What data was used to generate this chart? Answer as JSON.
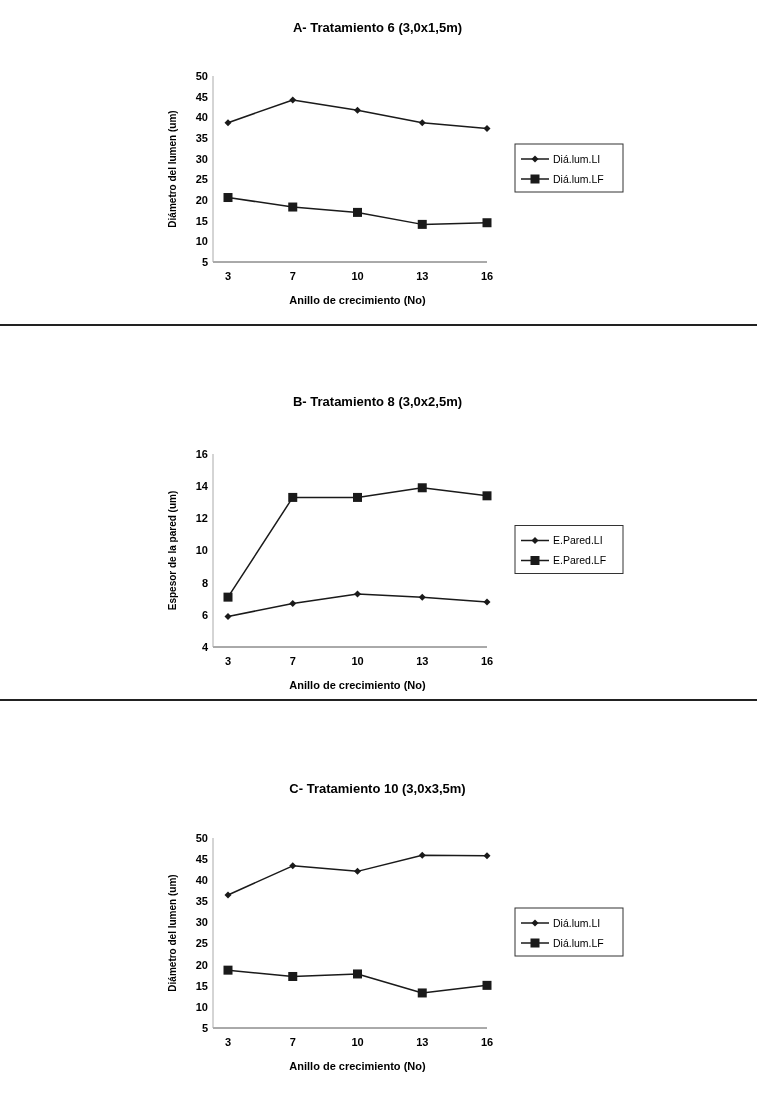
{
  "chart_data": [
    {
      "type": "line",
      "title": "A- Tratamiento 6 (3,0x1,5m)",
      "xlabel": "Anillo de crecimiento (No)",
      "ylabel": "Diámetro del lumen (um)",
      "categories": [
        "3",
        "7",
        "10",
        "13",
        "16"
      ],
      "ylim": [
        5,
        50
      ],
      "yticks": [
        5,
        10,
        15,
        20,
        25,
        30,
        35,
        40,
        45,
        50
      ],
      "grid": false,
      "legend": "right",
      "series": [
        {
          "name": "Diá.lum.LI",
          "color": "#1a1a1a",
          "marker": "diamond",
          "values": [
            38.7,
            44.2,
            41.7,
            38.7,
            37.3
          ]
        },
        {
          "name": "Diá.lum.LF",
          "color": "#1a1a1a",
          "marker": "square",
          "values": [
            20.6,
            18.3,
            17.0,
            14.1,
            14.5
          ]
        }
      ]
    },
    {
      "type": "line",
      "title": "B- Tratamiento 8 (3,0x2,5m)",
      "xlabel": "Anillo de crecimiento (No)",
      "ylabel": "Espesor de la pared (um)",
      "categories": [
        "3",
        "7",
        "10",
        "13",
        "16"
      ],
      "ylim": [
        4,
        16
      ],
      "yticks": [
        4,
        6,
        8,
        10,
        12,
        14,
        16
      ],
      "grid": false,
      "legend": "right",
      "series": [
        {
          "name": "E.Pared.LI",
          "color": "#1a1a1a",
          "marker": "diamond",
          "values": [
            5.9,
            6.7,
            7.3,
            7.1,
            6.8
          ]
        },
        {
          "name": "E.Pared.LF",
          "color": "#1a1a1a",
          "marker": "square",
          "values": [
            7.1,
            13.3,
            13.3,
            13.9,
            13.4
          ]
        }
      ]
    },
    {
      "type": "line",
      "title": "C- Tratamiento 10 (3,0x3,5m)",
      "xlabel": "Anillo de crecimiento (No)",
      "ylabel": "Diámetro del lumen (um)",
      "categories": [
        "3",
        "7",
        "10",
        "13",
        "16"
      ],
      "ylim": [
        5,
        50
      ],
      "yticks": [
        5,
        10,
        15,
        20,
        25,
        30,
        35,
        40,
        45,
        50
      ],
      "grid": false,
      "legend": "right",
      "series": [
        {
          "name": "Diá.lum.LI",
          "color": "#1a1a1a",
          "marker": "diamond",
          "values": [
            36.5,
            43.4,
            42.1,
            45.9,
            45.8
          ]
        },
        {
          "name": "Diá.lum.LF",
          "color": "#1a1a1a",
          "marker": "square",
          "values": [
            18.7,
            17.2,
            17.8,
            13.3,
            15.1
          ]
        }
      ]
    }
  ]
}
